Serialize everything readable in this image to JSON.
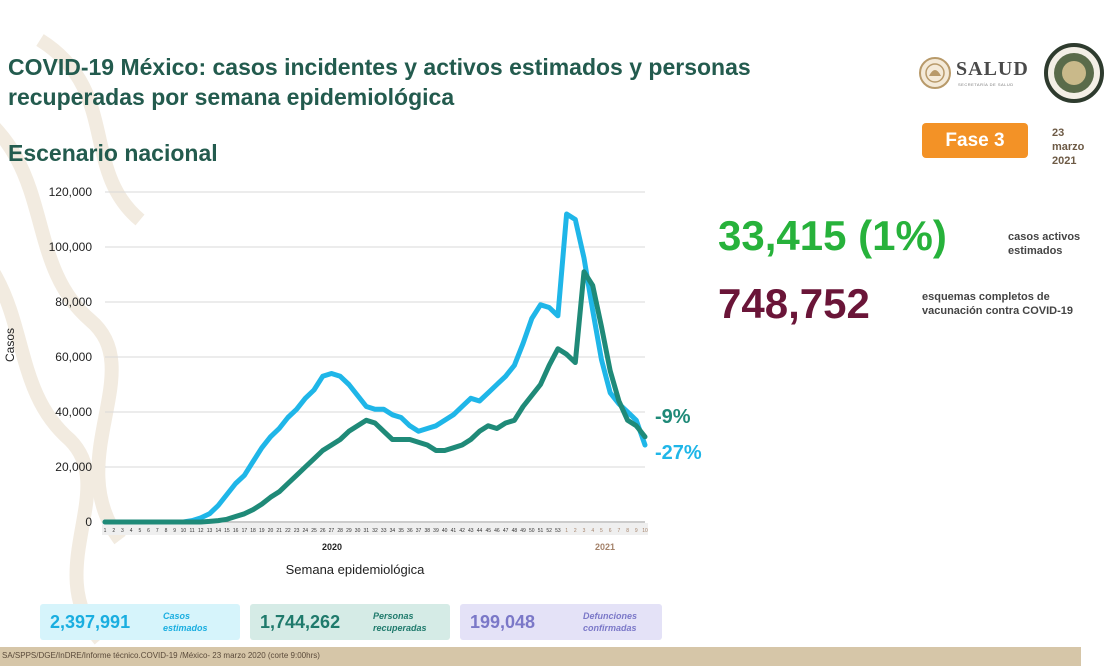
{
  "header": {
    "title": "COVID-19 México: casos incidentes y activos estimados y personas recuperadas por semana epidemiológica",
    "subtitle": "Escenario nacional"
  },
  "logos": {
    "salud_text": "SALUD",
    "salud_tagline": "SECRETARÍA DE SALUD"
  },
  "badge": {
    "fase": "Fase 3",
    "fase_color": "#f39226",
    "date": "23 marzo 2021"
  },
  "stats": {
    "active_value": "33,415 (1%)",
    "active_label": "casos activos estimados",
    "active_color": "#27b23b",
    "vaccine_value": "748,752",
    "vaccine_label": "esquemas completos de vacunación contra COVID-19",
    "vaccine_color": "#6a1538"
  },
  "summary": [
    {
      "value": "2,397,991",
      "label": "Casos estimados",
      "color": "#1aaee0"
    },
    {
      "value": "1,744,262",
      "label": "Personas recuperadas",
      "color": "#1f7a6c"
    },
    {
      "value": "199,048",
      "label": "Defunciones confirmadas",
      "color": "#7b78c8"
    }
  ],
  "footer": {
    "source": "SA/SPPS/DGE/InDRE/Informe técnico.COVID-19 /México- 23 marzo 2020 (corte 9:00hrs)"
  },
  "chart_data": {
    "type": "line",
    "ylabel": "Casos",
    "xlabel": "Semana epidemiológica",
    "ylim": [
      0,
      120000
    ],
    "yticks": [
      0,
      20000,
      40000,
      60000,
      80000,
      100000,
      120000
    ],
    "year_labels": [
      "2020",
      "2021"
    ],
    "categories": [
      "1",
      "2",
      "3",
      "4",
      "5",
      "6",
      "7",
      "8",
      "9",
      "10",
      "11",
      "12",
      "13",
      "14",
      "15",
      "16",
      "17",
      "18",
      "19",
      "20",
      "21",
      "22",
      "23",
      "24",
      "25",
      "26",
      "27",
      "28",
      "29",
      "30",
      "31",
      "32",
      "33",
      "34",
      "35",
      "36",
      "37",
      "38",
      "39",
      "40",
      "41",
      "42",
      "43",
      "44",
      "45",
      "46",
      "47",
      "48",
      "49",
      "50",
      "51",
      "52",
      "53",
      "1",
      "2",
      "3",
      "4",
      "5",
      "6",
      "7",
      "8",
      "9",
      "10"
    ],
    "series": [
      {
        "color": "#1fb6e8",
        "end_label": "-27%",
        "values": [
          0,
          0,
          0,
          0,
          0,
          0,
          0,
          0,
          0,
          0,
          500,
          1500,
          3000,
          6000,
          10000,
          14000,
          17000,
          22000,
          27000,
          31000,
          34000,
          38000,
          41000,
          45000,
          48000,
          53000,
          54000,
          53000,
          50000,
          46000,
          42000,
          41000,
          41000,
          39000,
          38000,
          35000,
          33000,
          34000,
          35000,
          37000,
          39000,
          42000,
          45000,
          44000,
          47000,
          50000,
          53000,
          57000,
          65000,
          74000,
          79000,
          78000,
          75000,
          112000,
          110000,
          96000,
          77000,
          59000,
          47000,
          43000,
          40000,
          37000,
          28000
        ]
      },
      {
        "color": "#1f8a78",
        "end_label": "-9%",
        "values": [
          0,
          0,
          0,
          0,
          0,
          0,
          0,
          0,
          0,
          0,
          0,
          0,
          200,
          500,
          1000,
          2000,
          3000,
          4500,
          6500,
          9000,
          11000,
          14000,
          17000,
          20000,
          23000,
          26000,
          28000,
          30000,
          33000,
          35000,
          37000,
          36000,
          33000,
          30000,
          30000,
          30000,
          29000,
          28000,
          26000,
          26000,
          27000,
          28000,
          30000,
          33000,
          35000,
          34000,
          36000,
          37000,
          42000,
          46000,
          50000,
          57000,
          63000,
          61000,
          58000,
          91000,
          86000,
          71000,
          55000,
          44000,
          37000,
          35000,
          31000
        ]
      }
    ]
  }
}
